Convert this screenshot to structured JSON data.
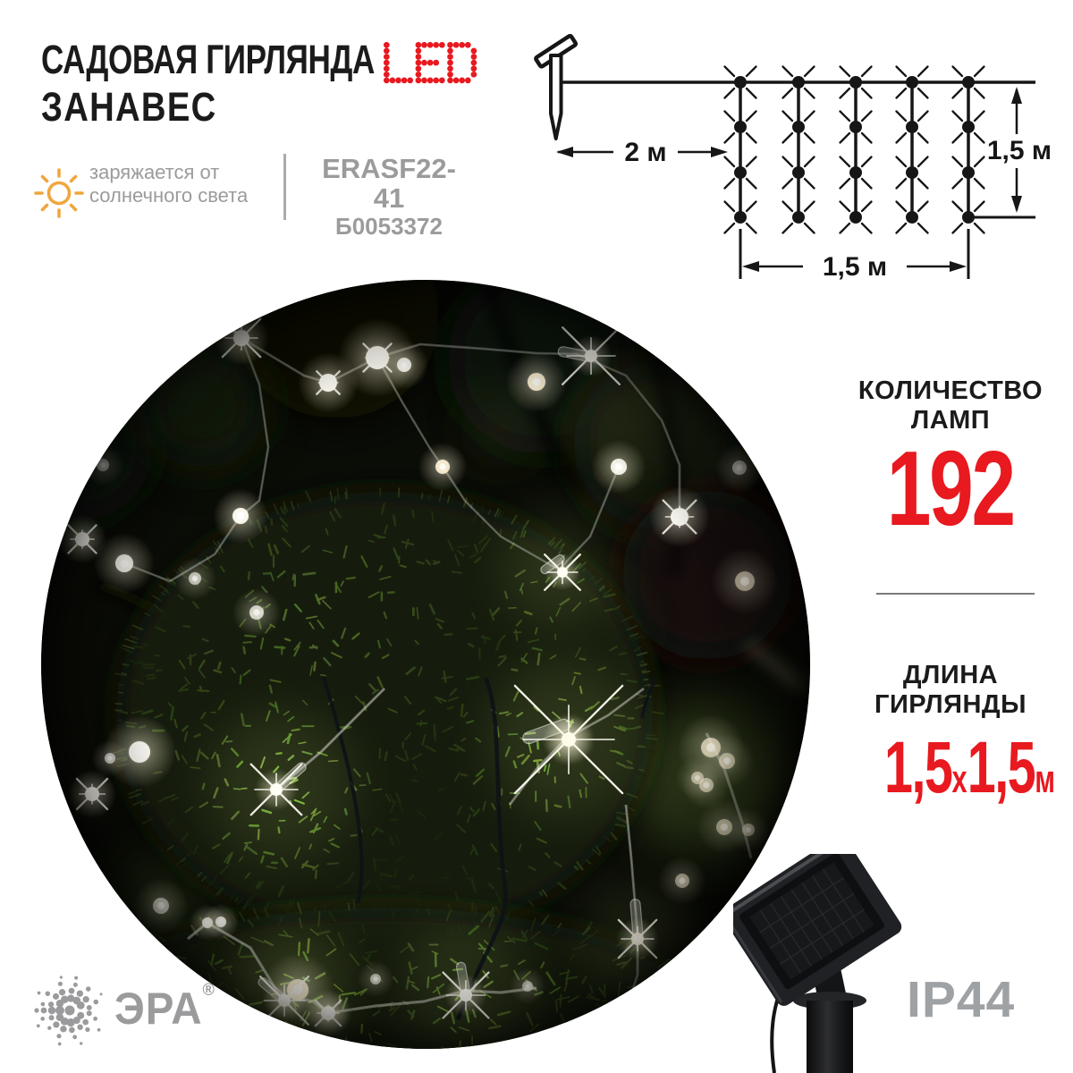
{
  "header": {
    "title_line1": "САДОВАЯ ГИРЛЯНДА",
    "title_led": "LED",
    "title_line2": "ЗАНАВЕС",
    "note_line1": "заряжается от",
    "note_line2": "солнечного света",
    "model": "ERASF22-41",
    "sku": "Б0053372"
  },
  "diagram": {
    "distance_label": "2 м",
    "height_label": "1,5 м",
    "width_label": "1,5 м",
    "columns": 5,
    "rows": 4
  },
  "specs": {
    "lamps_title_line1": "КОЛИЧЕСТВО",
    "lamps_title_line2": "ЛАМП",
    "lamps_value": "192",
    "length_title_line1": "ДЛИНА",
    "length_title_line2": "ГИРЛЯНДЫ",
    "length_value_a": "1,5",
    "length_multiplier": "х",
    "length_value_b": "1,5",
    "length_unit": "м"
  },
  "footer": {
    "brand": "ЭРА",
    "registered": "®",
    "ip_rating": "IP44"
  },
  "colors": {
    "accent_red": "#e8191f",
    "text_gray": "#9b9b9d",
    "ink": "#1b1b1b",
    "sun_orange": "#f0a63d",
    "ip_gray": "#9fa2a5"
  }
}
